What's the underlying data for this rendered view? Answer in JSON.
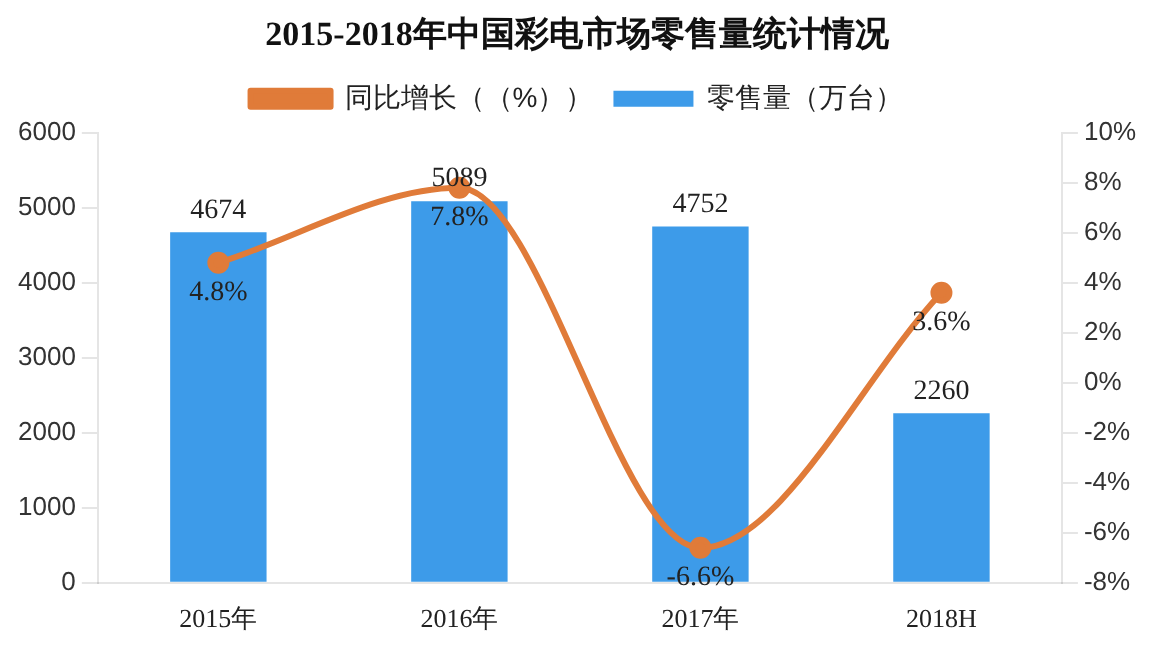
{
  "chart_data": {
    "type": "bar",
    "title": "2015-2018年中国彩电市场零售量统计情况",
    "categories": [
      "2015年",
      "2016年",
      "2017年",
      "2018H"
    ],
    "series": [
      {
        "name": "零售量（万台）",
        "color": "#3d9be9",
        "values": [
          4674,
          5089,
          4752,
          2260
        ]
      },
      {
        "name": "同比增长（（%））",
        "type": "line",
        "axis": "y2",
        "color": "#e07b39",
        "marker": "circle",
        "values": [
          4.8,
          7.8,
          -6.6,
          3.6
        ],
        "value_labels": [
          "4.8%",
          "7.8%",
          "-6.6%",
          "3.6%"
        ]
      }
    ],
    "ylim": [
      0,
      6000
    ],
    "yticks": [
      0,
      1000,
      2000,
      3000,
      4000,
      5000,
      6000
    ],
    "y2lim": [
      -8,
      10
    ],
    "y2ticks": [
      {
        "value": -8,
        "label": "-8%"
      },
      {
        "value": -6,
        "label": "-6%"
      },
      {
        "value": -4,
        "label": "-4%"
      },
      {
        "value": -2,
        "label": "-2%"
      },
      {
        "value": 0,
        "label": "0%"
      },
      {
        "value": 2,
        "label": "2%"
      },
      {
        "value": 4,
        "label": "4%"
      },
      {
        "value": 6,
        "label": "6%"
      },
      {
        "value": 8,
        "label": "8%"
      },
      {
        "value": 10,
        "label": "10%"
      }
    ],
    "data_labels": true,
    "grid": false,
    "legend": "top"
  }
}
